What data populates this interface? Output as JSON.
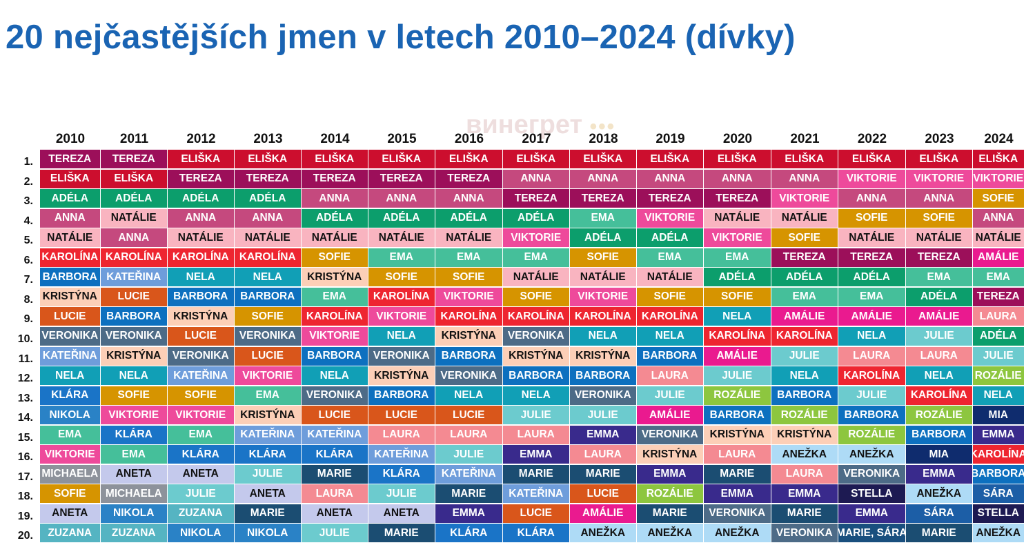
{
  "title": "20 nejčastějších jmen v letech 2010–2024 (dívky)",
  "watermark": {
    "text": "винегрет",
    "dots": "•••"
  },
  "chart_data": {
    "type": "table",
    "title": "20 nejčastějších jmen v letech 2010–2024 (dívky)",
    "years": [
      "2010",
      "2011",
      "2012",
      "2013",
      "2014",
      "2015",
      "2016",
      "2017",
      "2018",
      "2019",
      "2020",
      "2021",
      "2022",
      "2023",
      "2024"
    ],
    "ranks": [
      "1.",
      "2.",
      "3.",
      "4.",
      "5.",
      "6.",
      "7.",
      "8.",
      "9.",
      "10.",
      "11.",
      "12.",
      "13.",
      "14.",
      "15.",
      "16.",
      "17.",
      "18.",
      "19.",
      "20."
    ],
    "columns": [
      [
        "TEREZA",
        "ELIŠKA",
        "ADÉLA",
        "ANNA",
        "NATÁLIE",
        "KAROLÍNA",
        "BARBORA",
        "KRISTÝNA",
        "LUCIE",
        "VERONIKA",
        "KATEŘINA",
        "NELA",
        "KLÁRA",
        "NIKOLA",
        "EMA",
        "VIKTORIE",
        "MICHAELA",
        "SOFIE",
        "ANETA",
        "ZUZANA"
      ],
      [
        "TEREZA",
        "ELIŠKA",
        "ADÉLA",
        "NATÁLIE",
        "ANNA",
        "KAROLÍNA",
        "KATEŘINA",
        "LUCIE",
        "BARBORA",
        "VERONIKA",
        "KRISTÝNA",
        "NELA",
        "SOFIE",
        "VIKTORIE",
        "KLÁRA",
        "EMA",
        "ANETA",
        "MICHAELA",
        "NIKOLA",
        "ZUZANA"
      ],
      [
        "ELIŠKA",
        "TEREZA",
        "ADÉLA",
        "ANNA",
        "NATÁLIE",
        "KAROLÍNA",
        "NELA",
        "BARBORA",
        "KRISTÝNA",
        "LUCIE",
        "VERONIKA",
        "KATEŘINA",
        "SOFIE",
        "VIKTORIE",
        "EMA",
        "KLÁRA",
        "ANETA",
        "JULIE",
        "ZUZANA",
        "NIKOLA"
      ],
      [
        "ELIŠKA",
        "TEREZA",
        "ADÉLA",
        "ANNA",
        "NATÁLIE",
        "KAROLÍNA",
        "NELA",
        "BARBORA",
        "SOFIE",
        "VERONIKA",
        "LUCIE",
        "VIKTORIE",
        "EMA",
        "KRISTÝNA",
        "KATEŘINA",
        "KLÁRA",
        "JULIE",
        "ANETA",
        "MARIE",
        "NIKOLA"
      ],
      [
        "ELIŠKA",
        "TEREZA",
        "ANNA",
        "ADÉLA",
        "NATÁLIE",
        "SOFIE",
        "KRISTÝNA",
        "EMA",
        "KAROLÍNA",
        "VIKTORIE",
        "BARBORA",
        "NELA",
        "VERONIKA",
        "LUCIE",
        "KATEŘINA",
        "KLÁRA",
        "MARIE",
        "LAURA",
        "ANETA",
        "JULIE"
      ],
      [
        "ELIŠKA",
        "TEREZA",
        "ANNA",
        "ADÉLA",
        "NATÁLIE",
        "EMA",
        "SOFIE",
        "KAROLÍNA",
        "VIKTORIE",
        "NELA",
        "VERONIKA",
        "KRISTÝNA",
        "BARBORA",
        "LUCIE",
        "LAURA",
        "KATEŘINA",
        "KLÁRA",
        "JULIE",
        "ANETA",
        "MARIE"
      ],
      [
        "ELIŠKA",
        "TEREZA",
        "ANNA",
        "ADÉLA",
        "NATÁLIE",
        "EMA",
        "SOFIE",
        "VIKTORIE",
        "KAROLÍNA",
        "KRISTÝNA",
        "BARBORA",
        "VERONIKA",
        "NELA",
        "LUCIE",
        "LAURA",
        "JULIE",
        "KATEŘINA",
        "MARIE",
        "EMMA",
        "KLÁRA"
      ],
      [
        "ELIŠKA",
        "ANNA",
        "TEREZA",
        "ADÉLA",
        "VIKTORIE",
        "EMA",
        "NATÁLIE",
        "SOFIE",
        "KAROLÍNA",
        "VERONIKA",
        "KRISTÝNA",
        "BARBORA",
        "NELA",
        "JULIE",
        "LAURA",
        "EMMA",
        "MARIE",
        "KATEŘINA",
        "LUCIE",
        "KLÁRA"
      ],
      [
        "ELIŠKA",
        "ANNA",
        "TEREZA",
        "EMA",
        "ADÉLA",
        "SOFIE",
        "NATÁLIE",
        "VIKTORIE",
        "KAROLÍNA",
        "NELA",
        "KRISTÝNA",
        "BARBORA",
        "VERONIKA",
        "JULIE",
        "EMMA",
        "LAURA",
        "MARIE",
        "LUCIE",
        "AMÁLIE",
        "ANEŽKA"
      ],
      [
        "ELIŠKA",
        "ANNA",
        "TEREZA",
        "VIKTORIE",
        "ADÉLA",
        "EMA",
        "NATÁLIE",
        "SOFIE",
        "KAROLÍNA",
        "NELA",
        "BARBORA",
        "LAURA",
        "JULIE",
        "AMÁLIE",
        "VERONIKA",
        "KRISTÝNA",
        "EMMA",
        "ROZÁLIE",
        "MARIE",
        "ANEŽKA"
      ],
      [
        "ELIŠKA",
        "ANNA",
        "TEREZA",
        "NATÁLIE",
        "VIKTORIE",
        "EMA",
        "ADÉLA",
        "SOFIE",
        "NELA",
        "KAROLÍNA",
        "AMÁLIE",
        "JULIE",
        "ROZÁLIE",
        "BARBORA",
        "KRISTÝNA",
        "LAURA",
        "MARIE",
        "EMMA",
        "VERONIKA",
        "ANEŽKA"
      ],
      [
        "ELIŠKA",
        "ANNA",
        "VIKTORIE",
        "NATÁLIE",
        "SOFIE",
        "TEREZA",
        "ADÉLA",
        "EMA",
        "AMÁLIE",
        "KAROLÍNA",
        "JULIE",
        "NELA",
        "BARBORA",
        "ROZÁLIE",
        "KRISTÝNA",
        "ANEŽKA",
        "LAURA",
        "EMMA",
        "MARIE",
        "VERONIKA"
      ],
      [
        "ELIŠKA",
        "VIKTORIE",
        "ANNA",
        "SOFIE",
        "NATÁLIE",
        "TEREZA",
        "ADÉLA",
        "EMA",
        "AMÁLIE",
        "NELA",
        "LAURA",
        "KAROLÍNA",
        "JULIE",
        "BARBORA",
        "ROZÁLIE",
        "ANEŽKA",
        "VERONIKA",
        "STELLA",
        "EMMA",
        "MARIE, SÁRA"
      ],
      [
        "ELIŠKA",
        "VIKTORIE",
        "ANNA",
        "SOFIE",
        "NATÁLIE",
        "TEREZA",
        "EMA",
        "ADÉLA",
        "AMÁLIE",
        "JULIE",
        "LAURA",
        "NELA",
        "KAROLÍNA",
        "ROZÁLIE",
        "BARBORA",
        "MIA",
        "EMMA",
        "ANEŽKA",
        "SÁRA",
        "MARIE"
      ],
      [
        "ELIŠKA",
        "VIKTORIE",
        "SOFIE",
        "ANNA",
        "NATÁLIE",
        "AMÁLIE",
        "EMA",
        "TEREZA",
        "LAURA",
        "ADÉLA",
        "JULIE",
        "ROZÁLIE",
        "NELA",
        "MIA",
        "EMMA",
        "KAROLÍNA",
        "BARBORA",
        "SÁRA",
        "STELLA",
        "ANEŽKA"
      ]
    ]
  },
  "name_colors": {
    "TEREZA": "#9c0f5a",
    "ELIŠKA": "#cc0e2e",
    "ADÉLA": "#0c9e6c",
    "ANNA": "#c5497e",
    "NATÁLIE": "#f9b4c0",
    "KAROLÍNA": "#ee2530",
    "BARBORA": "#0d70bf",
    "KRISTÝNA": "#fccfb7",
    "LUCIE": "#d9561b",
    "VERONIKA": "#4d6b87",
    "KATEŘINA": "#6e9ddb",
    "NELA": "#119fb6",
    "KLÁRA": "#1a74c7",
    "NIKOLA": "#2a82c6",
    "EMA": "#45bf9a",
    "VIKTORIE": "#ee4a9b",
    "MICHAELA": "#8d929b",
    "SOFIE": "#d69400",
    "ANETA": "#c4c9ec",
    "ZUZANA": "#55b4c2",
    "JULIE": "#6ccbce",
    "MARIE": "#1b4d72",
    "LAURA": "#f48a92",
    "EMMA": "#392a8c",
    "AMÁLIE": "#ea1a8f",
    "ANEŽKA": "#aedbf6",
    "ROZÁLIE": "#8dc63f",
    "STELLA": "#1d1a52",
    "MIA": "#0f2c6e",
    "SÁRA": "#1c5ea6",
    "MARIE, SÁRA": "#194f7e"
  },
  "dark_text_names": [
    "NATÁLIE",
    "KRISTÝNA",
    "ANETA",
    "ANEŽKA"
  ]
}
